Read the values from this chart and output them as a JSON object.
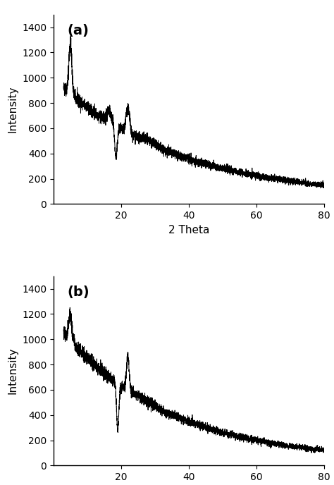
{
  "title_a": "(a)",
  "title_b": "(b)",
  "xlabel": "2 Theta",
  "ylabel": "Intensity",
  "xlim": [
    0,
    80
  ],
  "ylim": [
    0,
    1500
  ],
  "yticks": [
    0,
    200,
    400,
    600,
    800,
    1000,
    1200,
    1400
  ],
  "xticks": [
    20,
    40,
    60,
    80
  ],
  "line_color": "#000000",
  "line_width": 0.7,
  "background_color": "#ffffff",
  "figsize": [
    4.74,
    6.88
  ],
  "dpi": 100
}
